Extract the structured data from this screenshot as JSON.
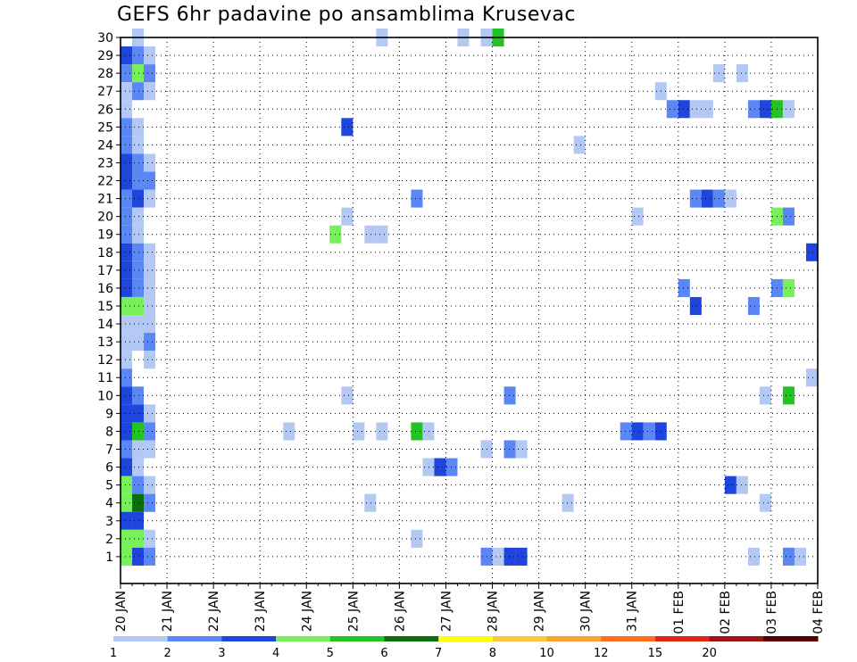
{
  "chart_data": {
    "type": "heatmap",
    "title": "GEFS 6hr padavine po ansamblima Krusevac",
    "y_categories": [
      "1",
      "2",
      "3",
      "4",
      "5",
      "6",
      "7",
      "8",
      "9",
      "10",
      "11",
      "12",
      "13",
      "14",
      "15",
      "16",
      "17",
      "18",
      "19",
      "20",
      "21",
      "22",
      "23",
      "24",
      "25",
      "26",
      "27",
      "28",
      "29",
      "30"
    ],
    "x_tick_labels": [
      "20 JAN",
      "21 JAN",
      "22 JAN",
      "23 JAN",
      "24 JAN",
      "25 JAN",
      "26 JAN",
      "27 JAN",
      "28 JAN",
      "29 JAN",
      "30 JAN",
      "31 JAN",
      "01 FEB",
      "02 FEB",
      "03 FEB",
      "04 FEB"
    ],
    "x_range": [
      "20 JAN 00Z",
      "04 FEB 00Z"
    ],
    "time_step": "6hr",
    "grid": true,
    "legend": {
      "position": "bottom",
      "labels": [
        "1",
        "2",
        "3",
        "4",
        "5",
        "6",
        "7",
        "8",
        "10",
        "12",
        "15",
        "20"
      ],
      "colors": [
        "#b4c8f5",
        "#5a87f5",
        "#1e46dc",
        "#78f05a",
        "#23c323",
        "#0a6e0a",
        "#ffff00",
        "#ffc83c",
        "#ffa032",
        "#ff6e1e",
        "#e12814",
        "#a01414",
        "#5a0000"
      ]
    },
    "cells": [
      {
        "member": 30,
        "day": "20 JAN",
        "step": 1,
        "level": 1
      },
      {
        "member": 30,
        "day": "25 JAN",
        "step": 2,
        "level": 1
      },
      {
        "member": 30,
        "day": "27 JAN",
        "step": 1,
        "level": 1
      },
      {
        "member": 30,
        "day": "27 JAN",
        "step": 3,
        "level": 1
      },
      {
        "member": 30,
        "day": "28 JAN",
        "step": 0,
        "level": 5
      },
      {
        "member": 29,
        "day": "20 JAN",
        "step": 0,
        "level": 3
      },
      {
        "member": 29,
        "day": "20 JAN",
        "step": 1,
        "level": 2
      },
      {
        "member": 29,
        "day": "20 JAN",
        "step": 2,
        "level": 1
      },
      {
        "member": 28,
        "day": "20 JAN",
        "step": 0,
        "level": 2
      },
      {
        "member": 28,
        "day": "20 JAN",
        "step": 1,
        "level": 4
      },
      {
        "member": 28,
        "day": "20 JAN",
        "step": 2,
        "level": 2
      },
      {
        "member": 28,
        "day": "01 FEB",
        "step": 3,
        "level": 1
      },
      {
        "member": 28,
        "day": "02 FEB",
        "step": 1,
        "level": 1
      },
      {
        "member": 27,
        "day": "20 JAN",
        "step": 0,
        "level": 1
      },
      {
        "member": 27,
        "day": "20 JAN",
        "step": 1,
        "level": 2
      },
      {
        "member": 27,
        "day": "20 JAN",
        "step": 2,
        "level": 1
      },
      {
        "member": 27,
        "day": "31 JAN",
        "step": 2,
        "level": 1
      },
      {
        "member": 26,
        "day": "20 JAN",
        "step": 0,
        "level": 1
      },
      {
        "member": 26,
        "day": "31 JAN",
        "step": 3,
        "level": 2
      },
      {
        "member": 26,
        "day": "01 FEB",
        "step": 0,
        "level": 3
      },
      {
        "member": 26,
        "day": "01 FEB",
        "step": 1,
        "level": 1
      },
      {
        "member": 26,
        "day": "01 FEB",
        "step": 2,
        "level": 1
      },
      {
        "member": 26,
        "day": "02 FEB",
        "step": 2,
        "level": 2
      },
      {
        "member": 26,
        "day": "02 FEB",
        "step": 3,
        "level": 3
      },
      {
        "member": 26,
        "day": "03 FEB",
        "step": 0,
        "level": 5
      },
      {
        "member": 26,
        "day": "03 FEB",
        "step": 1,
        "level": 1
      },
      {
        "member": 25,
        "day": "20 JAN",
        "step": 0,
        "level": 2
      },
      {
        "member": 25,
        "day": "20 JAN",
        "step": 1,
        "level": 1
      },
      {
        "member": 25,
        "day": "24 JAN",
        "step": 3,
        "level": 3
      },
      {
        "member": 24,
        "day": "20 JAN",
        "step": 0,
        "level": 2
      },
      {
        "member": 24,
        "day": "20 JAN",
        "step": 1,
        "level": 1
      },
      {
        "member": 24,
        "day": "29 JAN",
        "step": 3,
        "level": 1
      },
      {
        "member": 23,
        "day": "20 JAN",
        "step": 0,
        "level": 3
      },
      {
        "member": 23,
        "day": "20 JAN",
        "step": 1,
        "level": 2
      },
      {
        "member": 23,
        "day": "20 JAN",
        "step": 2,
        "level": 1
      },
      {
        "member": 22,
        "day": "20 JAN",
        "step": 0,
        "level": 3
      },
      {
        "member": 22,
        "day": "20 JAN",
        "step": 1,
        "level": 2
      },
      {
        "member": 22,
        "day": "20 JAN",
        "step": 2,
        "level": 2
      },
      {
        "member": 21,
        "day": "20 JAN",
        "step": 0,
        "level": 2
      },
      {
        "member": 21,
        "day": "20 JAN",
        "step": 1,
        "level": 3
      },
      {
        "member": 21,
        "day": "20 JAN",
        "step": 2,
        "level": 1
      },
      {
        "member": 21,
        "day": "26 JAN",
        "step": 1,
        "level": 2
      },
      {
        "member": 21,
        "day": "01 FEB",
        "step": 1,
        "level": 2
      },
      {
        "member": 21,
        "day": "01 FEB",
        "step": 2,
        "level": 3
      },
      {
        "member": 21,
        "day": "01 FEB",
        "step": 3,
        "level": 2
      },
      {
        "member": 21,
        "day": "02 FEB",
        "step": 0,
        "level": 1
      },
      {
        "member": 20,
        "day": "20 JAN",
        "step": 0,
        "level": 2
      },
      {
        "member": 20,
        "day": "20 JAN",
        "step": 1,
        "level": 1
      },
      {
        "member": 20,
        "day": "24 JAN",
        "step": 3,
        "level": 1
      },
      {
        "member": 20,
        "day": "31 JAN",
        "step": 0,
        "level": 1
      },
      {
        "member": 20,
        "day": "03 FEB",
        "step": 0,
        "level": 4
      },
      {
        "member": 20,
        "day": "03 FEB",
        "step": 1,
        "level": 2
      },
      {
        "member": 19,
        "day": "20 JAN",
        "step": 0,
        "level": 2
      },
      {
        "member": 19,
        "day": "20 JAN",
        "step": 1,
        "level": 1
      },
      {
        "member": 19,
        "day": "24 JAN",
        "step": 2,
        "level": 4
      },
      {
        "member": 19,
        "day": "25 JAN",
        "step": 1,
        "level": 1
      },
      {
        "member": 19,
        "day": "25 JAN",
        "step": 2,
        "level": 1
      },
      {
        "member": 18,
        "day": "20 JAN",
        "step": 0,
        "level": 3
      },
      {
        "member": 18,
        "day": "20 JAN",
        "step": 1,
        "level": 2
      },
      {
        "member": 18,
        "day": "20 JAN",
        "step": 2,
        "level": 1
      },
      {
        "member": 18,
        "day": "03 FEB",
        "step": 3,
        "level": 3
      },
      {
        "member": 17,
        "day": "20 JAN",
        "step": 0,
        "level": 3
      },
      {
        "member": 17,
        "day": "20 JAN",
        "step": 1,
        "level": 2
      },
      {
        "member": 17,
        "day": "20 JAN",
        "step": 2,
        "level": 1
      },
      {
        "member": 16,
        "day": "20 JAN",
        "step": 0,
        "level": 3
      },
      {
        "member": 16,
        "day": "20 JAN",
        "step": 1,
        "level": 2
      },
      {
        "member": 16,
        "day": "20 JAN",
        "step": 2,
        "level": 1
      },
      {
        "member": 16,
        "day": "01 FEB",
        "step": 0,
        "level": 2
      },
      {
        "member": 16,
        "day": "03 FEB",
        "step": 0,
        "level": 2
      },
      {
        "member": 16,
        "day": "03 FEB",
        "step": 1,
        "level": 4
      },
      {
        "member": 15,
        "day": "20 JAN",
        "step": 0,
        "level": 4
      },
      {
        "member": 15,
        "day": "20 JAN",
        "step": 1,
        "level": 4
      },
      {
        "member": 15,
        "day": "20 JAN",
        "step": 2,
        "level": 1
      },
      {
        "member": 15,
        "day": "01 FEB",
        "step": 1,
        "level": 3
      },
      {
        "member": 15,
        "day": "02 FEB",
        "step": 2,
        "level": 2
      },
      {
        "member": 14,
        "day": "20 JAN",
        "step": 0,
        "level": 1
      },
      {
        "member": 14,
        "day": "20 JAN",
        "step": 1,
        "level": 1
      },
      {
        "member": 14,
        "day": "20 JAN",
        "step": 2,
        "level": 1
      },
      {
        "member": 13,
        "day": "20 JAN",
        "step": 0,
        "level": 1
      },
      {
        "member": 13,
        "day": "20 JAN",
        "step": 1,
        "level": 1
      },
      {
        "member": 13,
        "day": "20 JAN",
        "step": 2,
        "level": 2
      },
      {
        "member": 12,
        "day": "20 JAN",
        "step": 0,
        "level": 1
      },
      {
        "member": 12,
        "day": "20 JAN",
        "step": 2,
        "level": 1
      },
      {
        "member": 11,
        "day": "20 JAN",
        "step": 0,
        "level": 2
      },
      {
        "member": 11,
        "day": "03 FEB",
        "step": 3,
        "level": 1
      },
      {
        "member": 10,
        "day": "20 JAN",
        "step": 0,
        "level": 3
      },
      {
        "member": 10,
        "day": "20 JAN",
        "step": 1,
        "level": 2
      },
      {
        "member": 10,
        "day": "24 JAN",
        "step": 3,
        "level": 1
      },
      {
        "member": 10,
        "day": "28 JAN",
        "step": 1,
        "level": 2
      },
      {
        "member": 10,
        "day": "02 FEB",
        "step": 3,
        "level": 1
      },
      {
        "member": 10,
        "day": "03 FEB",
        "step": 1,
        "level": 5
      },
      {
        "member": 9,
        "day": "20 JAN",
        "step": 0,
        "level": 3
      },
      {
        "member": 9,
        "day": "20 JAN",
        "step": 1,
        "level": 3
      },
      {
        "member": 9,
        "day": "20 JAN",
        "step": 2,
        "level": 1
      },
      {
        "member": 8,
        "day": "20 JAN",
        "step": 0,
        "level": 3
      },
      {
        "member": 8,
        "day": "20 JAN",
        "step": 1,
        "level": 5
      },
      {
        "member": 8,
        "day": "20 JAN",
        "step": 2,
        "level": 2
      },
      {
        "member": 8,
        "day": "23 JAN",
        "step": 2,
        "level": 1
      },
      {
        "member": 8,
        "day": "25 JAN",
        "step": 0,
        "level": 1
      },
      {
        "member": 8,
        "day": "25 JAN",
        "step": 2,
        "level": 1
      },
      {
        "member": 8,
        "day": "26 JAN",
        "step": 1,
        "level": 5
      },
      {
        "member": 8,
        "day": "26 JAN",
        "step": 2,
        "level": 1
      },
      {
        "member": 8,
        "day": "30 JAN",
        "step": 3,
        "level": 2
      },
      {
        "member": 8,
        "day": "31 JAN",
        "step": 0,
        "level": 3
      },
      {
        "member": 8,
        "day": "31 JAN",
        "step": 1,
        "level": 2
      },
      {
        "member": 8,
        "day": "31 JAN",
        "step": 2,
        "level": 3
      },
      {
        "member": 7,
        "day": "20 JAN",
        "step": 0,
        "level": 2
      },
      {
        "member": 7,
        "day": "20 JAN",
        "step": 1,
        "level": 1
      },
      {
        "member": 7,
        "day": "20 JAN",
        "step": 2,
        "level": 1
      },
      {
        "member": 7,
        "day": "27 JAN",
        "step": 3,
        "level": 1
      },
      {
        "member": 7,
        "day": "28 JAN",
        "step": 1,
        "level": 2
      },
      {
        "member": 7,
        "day": "28 JAN",
        "step": 2,
        "level": 1
      },
      {
        "member": 6,
        "day": "20 JAN",
        "step": 0,
        "level": 3
      },
      {
        "member": 6,
        "day": "20 JAN",
        "step": 1,
        "level": 1
      },
      {
        "member": 6,
        "day": "26 JAN",
        "step": 2,
        "level": 1
      },
      {
        "member": 6,
        "day": "26 JAN",
        "step": 3,
        "level": 3
      },
      {
        "member": 6,
        "day": "27 JAN",
        "step": 0,
        "level": 2
      },
      {
        "member": 5,
        "day": "20 JAN",
        "step": 0,
        "level": 4
      },
      {
        "member": 5,
        "day": "20 JAN",
        "step": 1,
        "level": 2
      },
      {
        "member": 5,
        "day": "20 JAN",
        "step": 2,
        "level": 1
      },
      {
        "member": 5,
        "day": "02 FEB",
        "step": 0,
        "level": 3
      },
      {
        "member": 5,
        "day": "02 FEB",
        "step": 1,
        "level": 1
      },
      {
        "member": 4,
        "day": "20 JAN",
        "step": 0,
        "level": 4
      },
      {
        "member": 4,
        "day": "20 JAN",
        "step": 1,
        "level": 6
      },
      {
        "member": 4,
        "day": "20 JAN",
        "step": 2,
        "level": 2
      },
      {
        "member": 4,
        "day": "25 JAN",
        "step": 1,
        "level": 1
      },
      {
        "member": 4,
        "day": "29 JAN",
        "step": 2,
        "level": 1
      },
      {
        "member": 4,
        "day": "02 FEB",
        "step": 3,
        "level": 1
      },
      {
        "member": 3,
        "day": "20 JAN",
        "step": 0,
        "level": 3
      },
      {
        "member": 3,
        "day": "20 JAN",
        "step": 1,
        "level": 3
      },
      {
        "member": 2,
        "day": "20 JAN",
        "step": 0,
        "level": 4
      },
      {
        "member": 2,
        "day": "20 JAN",
        "step": 1,
        "level": 4
      },
      {
        "member": 2,
        "day": "20 JAN",
        "step": 2,
        "level": 1
      },
      {
        "member": 2,
        "day": "26 JAN",
        "step": 1,
        "level": 1
      },
      {
        "member": 1,
        "day": "20 JAN",
        "step": 0,
        "level": 4
      },
      {
        "member": 1,
        "day": "20 JAN",
        "step": 1,
        "level": 3
      },
      {
        "member": 1,
        "day": "20 JAN",
        "step": 2,
        "level": 2
      },
      {
        "member": 1,
        "day": "27 JAN",
        "step": 3,
        "level": 2
      },
      {
        "member": 1,
        "day": "28 JAN",
        "step": 0,
        "level": 1
      },
      {
        "member": 1,
        "day": "28 JAN",
        "step": 1,
        "level": 3
      },
      {
        "member": 1,
        "day": "28 JAN",
        "step": 2,
        "level": 3
      },
      {
        "member": 1,
        "day": "02 FEB",
        "step": 2,
        "level": 1
      },
      {
        "member": 1,
        "day": "03 FEB",
        "step": 1,
        "level": 2
      },
      {
        "member": 1,
        "day": "03 FEB",
        "step": 2,
        "level": 1
      }
    ]
  }
}
